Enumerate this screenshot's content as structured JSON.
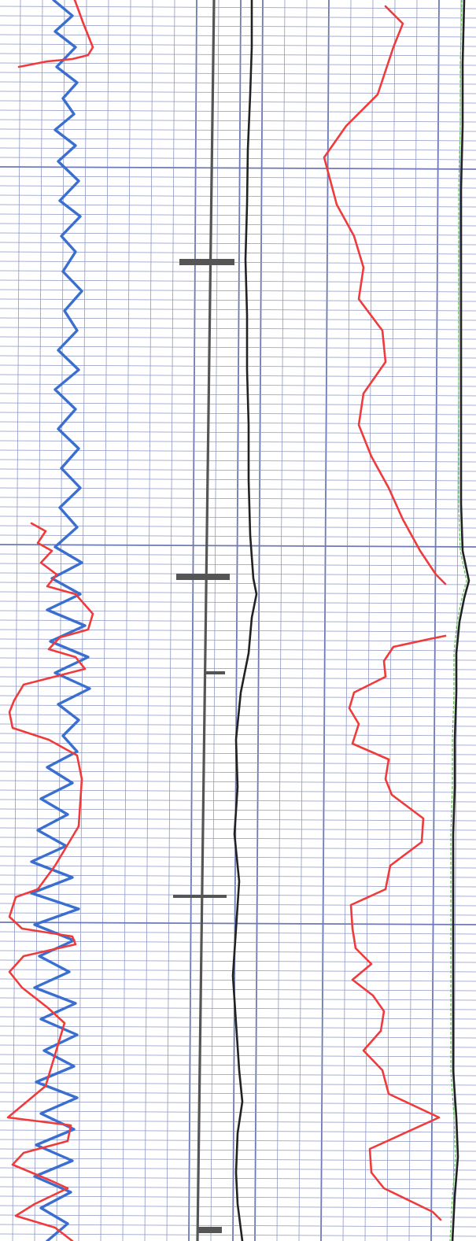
{
  "chart_data": {
    "type": "line",
    "title": "",
    "xlabel": "",
    "ylabel": "",
    "orientation": "vertical-depth",
    "depth_range": [
      0,
      1577
    ],
    "grid": {
      "minor": true,
      "major": true,
      "color": "#7b86bb"
    },
    "legend": "none",
    "colors": {
      "blue": "#3a6fd0",
      "red": "#ef3b3b",
      "black": "#222222",
      "gray": "#555555",
      "green": "#5bbf4a"
    },
    "series": [
      {
        "color": "blue",
        "points": [
          [
            68,
            0
          ],
          [
            92,
            20
          ],
          [
            70,
            40
          ],
          [
            96,
            60
          ],
          [
            72,
            85
          ],
          [
            98,
            105
          ],
          [
            80,
            125
          ],
          [
            94,
            145
          ],
          [
            70,
            165
          ],
          [
            96,
            185
          ],
          [
            74,
            205
          ],
          [
            100,
            230
          ],
          [
            76,
            255
          ],
          [
            102,
            275
          ],
          [
            78,
            300
          ],
          [
            96,
            320
          ],
          [
            80,
            345
          ],
          [
            104,
            370
          ],
          [
            82,
            395
          ],
          [
            98,
            420
          ],
          [
            74,
            445
          ],
          [
            100,
            470
          ],
          [
            70,
            495
          ],
          [
            96,
            520
          ],
          [
            74,
            545
          ],
          [
            100,
            570
          ],
          [
            78,
            595
          ],
          [
            102,
            620
          ],
          [
            76,
            645
          ],
          [
            98,
            670
          ],
          [
            70,
            695
          ],
          [
            104,
            715
          ],
          [
            66,
            735
          ],
          [
            102,
            755
          ],
          [
            60,
            775
          ],
          [
            108,
            795
          ],
          [
            64,
            815
          ],
          [
            112,
            835
          ],
          [
            70,
            855
          ],
          [
            114,
            875
          ],
          [
            74,
            895
          ],
          [
            100,
            915
          ],
          [
            80,
            935
          ],
          [
            98,
            955
          ],
          [
            60,
            975
          ],
          [
            92,
            995
          ],
          [
            52,
            1015
          ],
          [
            86,
            1035
          ],
          [
            48,
            1055
          ],
          [
            84,
            1075
          ],
          [
            40,
            1095
          ],
          [
            92,
            1115
          ],
          [
            40,
            1135
          ],
          [
            100,
            1155
          ],
          [
            44,
            1175
          ],
          [
            94,
            1195
          ],
          [
            50,
            1215
          ],
          [
            88,
            1235
          ],
          [
            44,
            1255
          ],
          [
            96,
            1275
          ],
          [
            52,
            1295
          ],
          [
            98,
            1315
          ],
          [
            56,
            1335
          ],
          [
            94,
            1355
          ],
          [
            46,
            1375
          ],
          [
            98,
            1395
          ],
          [
            52,
            1415
          ],
          [
            94,
            1435
          ],
          [
            46,
            1455
          ],
          [
            92,
            1475
          ],
          [
            44,
            1495
          ],
          [
            90,
            1515
          ],
          [
            52,
            1535
          ],
          [
            86,
            1555
          ],
          [
            60,
            1577
          ]
        ]
      },
      {
        "color": "red",
        "points": [
          [
            24,
            85
          ],
          [
            60,
            78
          ],
          [
            92,
            75
          ],
          [
            112,
            70
          ],
          [
            118,
            60
          ],
          [
            106,
            30
          ],
          [
            98,
            8
          ],
          [
            95,
            0
          ]
        ]
      },
      {
        "color": "red",
        "points": [
          [
            40,
            665
          ],
          [
            58,
            675
          ],
          [
            48,
            690
          ],
          [
            66,
            700
          ],
          [
            52,
            715
          ],
          [
            72,
            730
          ],
          [
            60,
            745
          ],
          [
            96,
            755
          ],
          [
            118,
            780
          ],
          [
            112,
            800
          ],
          [
            76,
            810
          ],
          [
            62,
            825
          ],
          [
            96,
            835
          ],
          [
            108,
            850
          ],
          [
            30,
            870
          ],
          [
            18,
            890
          ],
          [
            12,
            905
          ],
          [
            16,
            925
          ],
          [
            62,
            940
          ],
          [
            98,
            960
          ],
          [
            104,
            990
          ],
          [
            100,
            1050
          ],
          [
            70,
            1100
          ],
          [
            48,
            1130
          ],
          [
            20,
            1140
          ],
          [
            12,
            1165
          ],
          [
            28,
            1180
          ],
          [
            92,
            1190
          ],
          [
            96,
            1200
          ],
          [
            30,
            1215
          ],
          [
            12,
            1235
          ],
          [
            28,
            1255
          ],
          [
            60,
            1280
          ],
          [
            82,
            1300
          ],
          [
            58,
            1380
          ],
          [
            10,
            1420
          ],
          [
            90,
            1430
          ],
          [
            86,
            1450
          ],
          [
            30,
            1465
          ],
          [
            16,
            1480
          ],
          [
            64,
            1500
          ],
          [
            86,
            1510
          ],
          [
            44,
            1530
          ],
          [
            20,
            1545
          ],
          [
            70,
            1560
          ],
          [
            92,
            1577
          ]
        ]
      },
      {
        "color": "red",
        "points": [
          [
            490,
            8
          ],
          [
            512,
            30
          ],
          [
            500,
            60
          ],
          [
            480,
            120
          ],
          [
            440,
            160
          ],
          [
            412,
            200
          ],
          [
            420,
            230
          ],
          [
            428,
            260
          ],
          [
            450,
            300
          ],
          [
            462,
            340
          ],
          [
            456,
            380
          ],
          [
            486,
            420
          ],
          [
            490,
            460
          ],
          [
            462,
            500
          ],
          [
            456,
            540
          ],
          [
            472,
            580
          ],
          [
            494,
            620
          ],
          [
            512,
            660
          ],
          [
            534,
            700
          ],
          [
            554,
            730
          ],
          [
            566,
            742
          ]
        ]
      },
      {
        "color": "red",
        "points": [
          [
            566,
            808
          ],
          [
            546,
            812
          ],
          [
            500,
            822
          ],
          [
            488,
            840
          ],
          [
            490,
            860
          ],
          [
            450,
            880
          ],
          [
            444,
            900
          ],
          [
            456,
            920
          ],
          [
            448,
            945
          ],
          [
            494,
            965
          ],
          [
            490,
            990
          ],
          [
            498,
            1010
          ],
          [
            538,
            1040
          ],
          [
            536,
            1070
          ],
          [
            496,
            1100
          ],
          [
            490,
            1130
          ],
          [
            446,
            1150
          ],
          [
            448,
            1180
          ],
          [
            452,
            1205
          ],
          [
            472,
            1225
          ],
          [
            448,
            1245
          ],
          [
            474,
            1265
          ],
          [
            488,
            1285
          ],
          [
            484,
            1310
          ],
          [
            462,
            1335
          ],
          [
            486,
            1360
          ],
          [
            494,
            1390
          ],
          [
            558,
            1420
          ],
          [
            470,
            1460
          ],
          [
            472,
            1490
          ],
          [
            488,
            1510
          ],
          [
            550,
            1540
          ],
          [
            560,
            1550
          ]
        ]
      },
      {
        "color": "black",
        "points": [
          [
            320,
            0
          ],
          [
            320,
            60
          ],
          [
            318,
            120
          ],
          [
            315,
            190
          ],
          [
            314,
            260
          ],
          [
            312,
            330
          ],
          [
            314,
            400
          ],
          [
            314,
            470
          ],
          [
            316,
            540
          ],
          [
            316,
            610
          ],
          [
            318,
            680
          ],
          [
            322,
            735
          ],
          [
            326,
            755
          ],
          [
            320,
            785
          ],
          [
            316,
            830
          ],
          [
            306,
            880
          ],
          [
            300,
            940
          ],
          [
            302,
            1000
          ],
          [
            298,
            1060
          ],
          [
            304,
            1120
          ],
          [
            300,
            1180
          ],
          [
            296,
            1240
          ],
          [
            300,
            1300
          ],
          [
            304,
            1360
          ],
          [
            308,
            1400
          ],
          [
            302,
            1440
          ],
          [
            300,
            1490
          ],
          [
            302,
            1530
          ],
          [
            308,
            1577
          ]
        ]
      },
      {
        "color": "black",
        "points": [
          [
            590,
            0
          ],
          [
            588,
            80
          ],
          [
            588,
            160
          ],
          [
            586,
            240
          ],
          [
            586,
            320
          ],
          [
            586,
            400
          ],
          [
            586,
            480
          ],
          [
            586,
            560
          ],
          [
            586,
            640
          ],
          [
            588,
            700
          ],
          [
            596,
            738
          ],
          [
            590,
            760
          ],
          [
            584,
            790
          ],
          [
            580,
            830
          ],
          [
            580,
            880
          ],
          [
            578,
            940
          ],
          [
            578,
            1000
          ],
          [
            576,
            1060
          ],
          [
            576,
            1120
          ],
          [
            576,
            1180
          ],
          [
            576,
            1240
          ],
          [
            576,
            1300
          ],
          [
            576,
            1360
          ],
          [
            580,
            1420
          ],
          [
            582,
            1470
          ],
          [
            578,
            1520
          ],
          [
            575,
            1577
          ]
        ]
      },
      {
        "color": "gray",
        "points": [
          [
            272,
            0
          ],
          [
            268,
            300
          ],
          [
            264,
            600
          ],
          [
            260,
            900
          ],
          [
            256,
            1200
          ],
          [
            252,
            1500
          ],
          [
            251,
            1577
          ]
        ]
      }
    ],
    "markers": [
      {
        "y": 333,
        "x0": 228,
        "x1": 298,
        "heavy": true
      },
      {
        "y": 733,
        "x0": 224,
        "x1": 292,
        "heavy": true
      },
      {
        "y": 855,
        "x0": 262,
        "x1": 286,
        "heavy": false
      },
      {
        "y": 1139,
        "x0": 220,
        "x1": 288,
        "heavy": false
      },
      {
        "y": 1563,
        "x0": 250,
        "x1": 282,
        "heavy": true
      }
    ]
  }
}
